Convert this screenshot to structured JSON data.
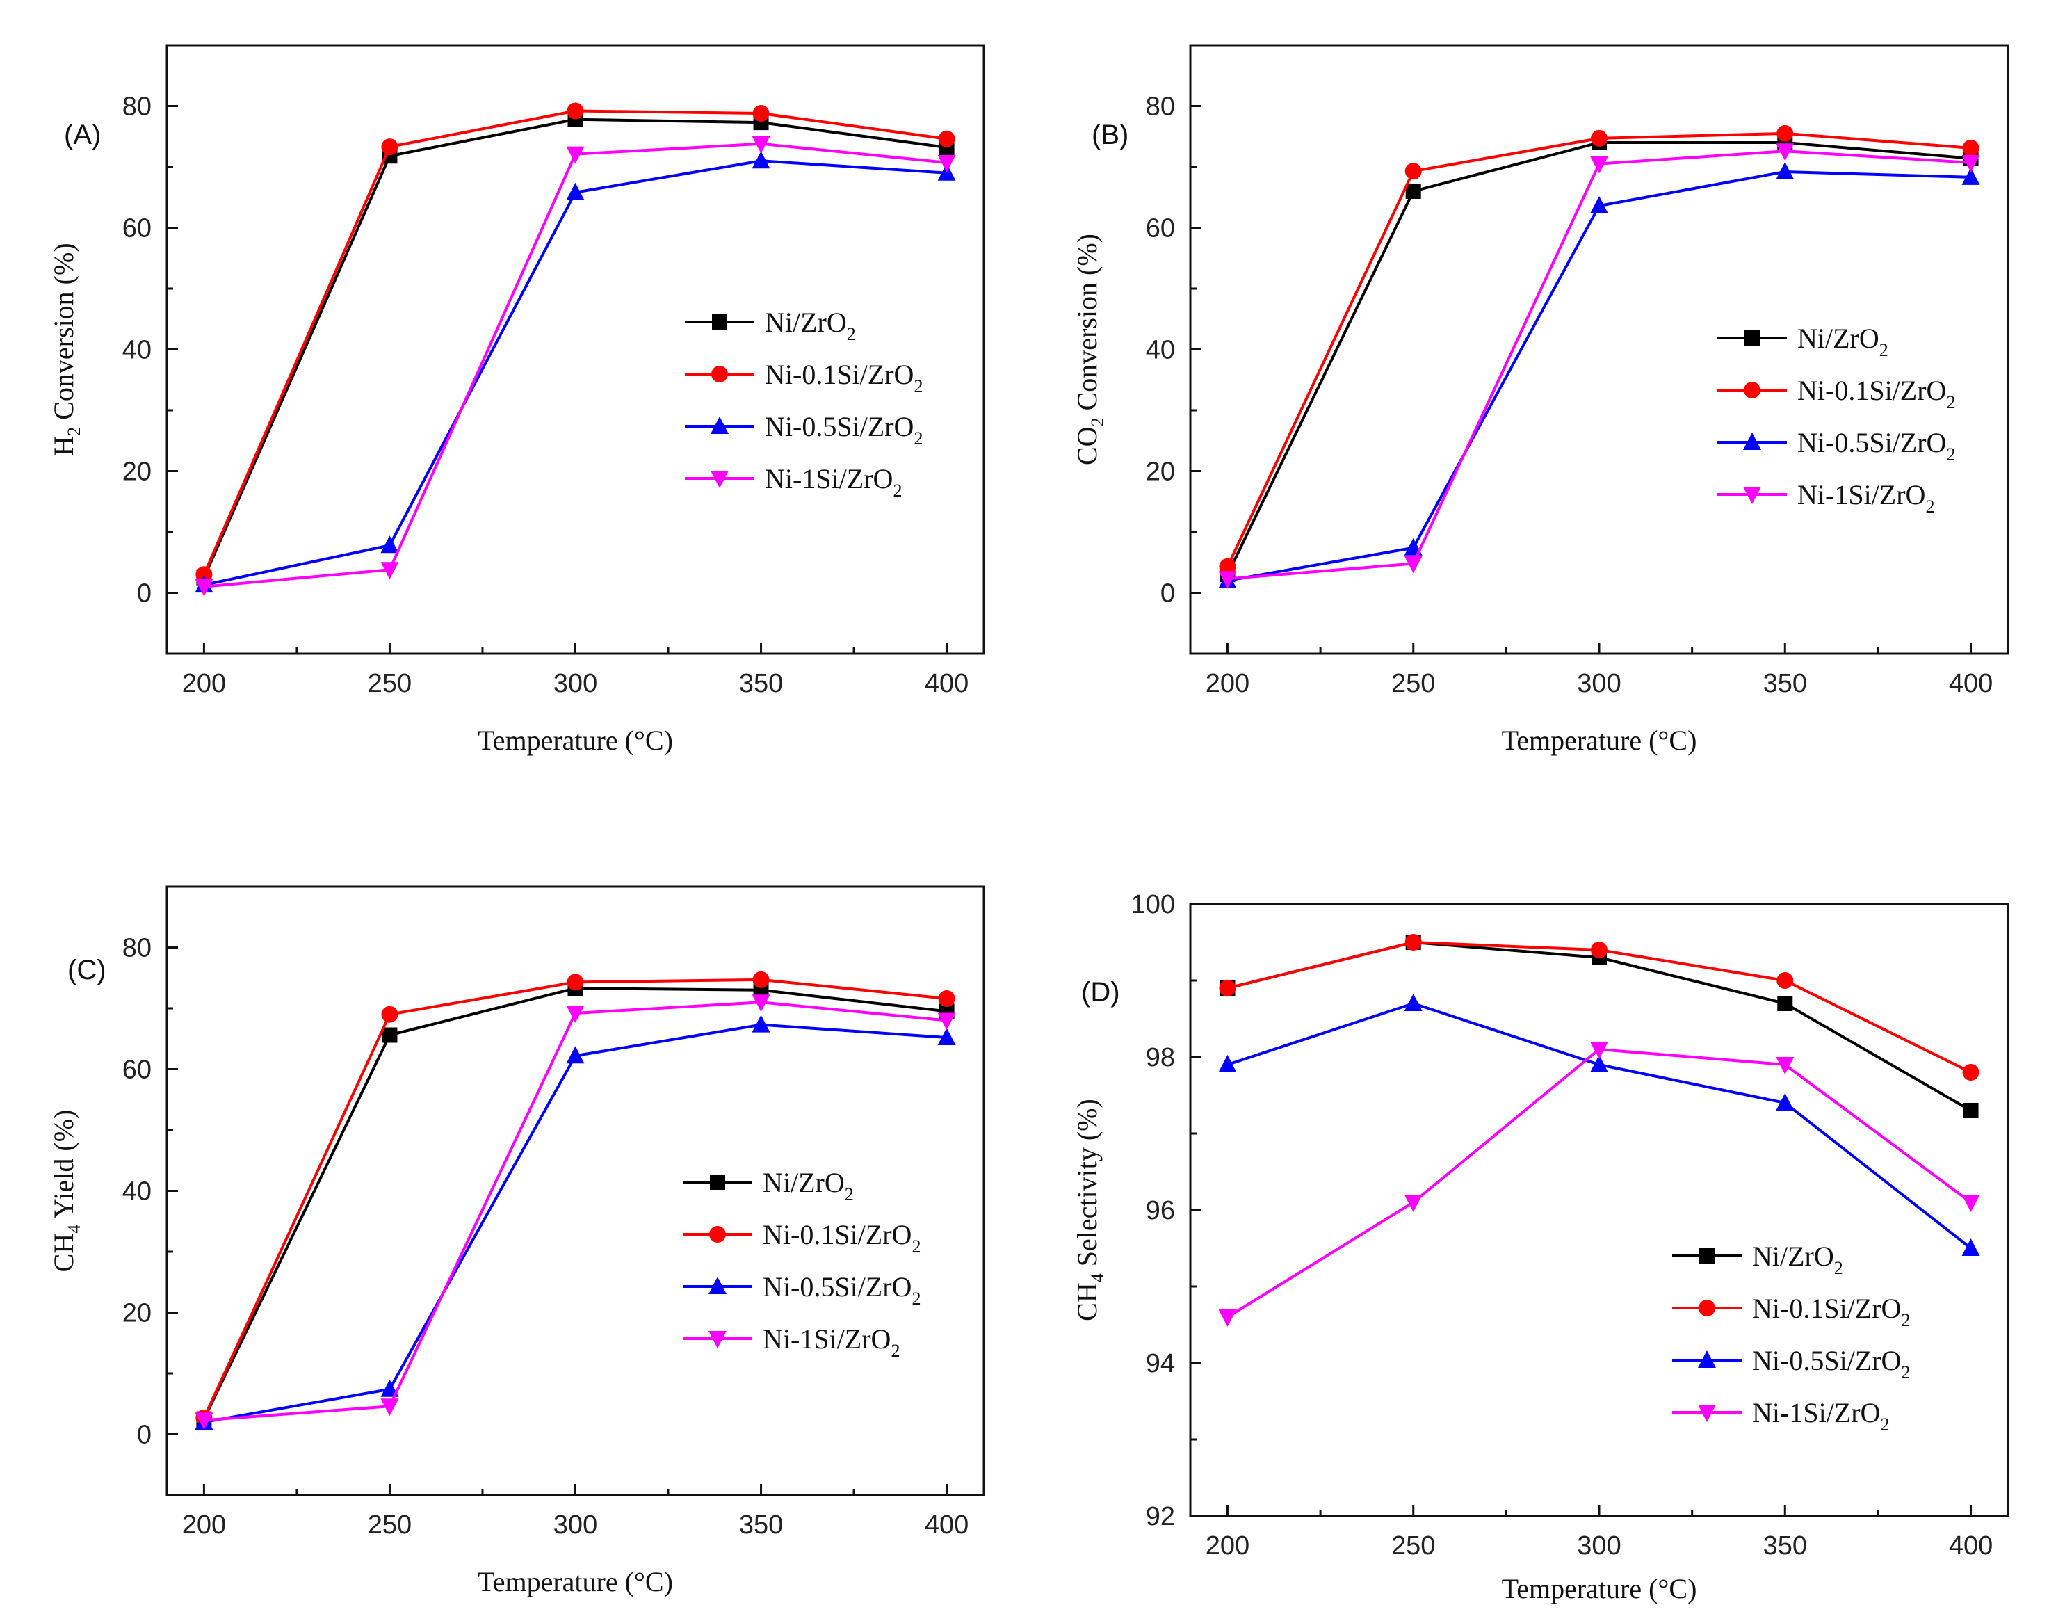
{
  "series_styles": [
    {
      "key": "ni",
      "color": "#000000",
      "marker": "square"
    },
    {
      "key": "ni01",
      "color": "#ff0000",
      "marker": "circle"
    },
    {
      "key": "ni05",
      "color": "#0000ff",
      "marker": "triangle-up"
    },
    {
      "key": "ni1",
      "color": "#ff00ff",
      "marker": "triangle-down"
    }
  ],
  "legend_names": [
    [
      "Ni/ZrO",
      "2",
      ""
    ],
    [
      "Ni-0.1Si/ZrO",
      "2",
      ""
    ],
    [
      "Ni-0.5Si/ZrO",
      "2",
      ""
    ],
    [
      "Ni-1Si/ZrO",
      "2",
      ""
    ]
  ],
  "chart_data": [
    {
      "type": "line",
      "panel_label": "(A)",
      "xlabel": "Temperature (°C)",
      "ylabel": [
        "H",
        "2",
        " Conversion (%)"
      ],
      "x": [
        200,
        250,
        300,
        350,
        400
      ],
      "xlim": [
        190,
        410
      ],
      "ylim": [
        -10,
        90
      ],
      "xticks": [
        200,
        250,
        300,
        350,
        400
      ],
      "yticks": [
        0,
        20,
        40,
        60,
        80
      ],
      "legend_position": "center-right",
      "series": [
        {
          "name": "Ni/ZrO2",
          "values": [
            2.5,
            71.8,
            77.8,
            77.3,
            73.2
          ]
        },
        {
          "name": "Ni-0.1Si/ZrO2",
          "values": [
            3.0,
            73.3,
            79.2,
            78.8,
            74.6
          ]
        },
        {
          "name": "Ni-0.5Si/ZrO2",
          "values": [
            1.3,
            7.8,
            65.8,
            71.0,
            69.0
          ]
        },
        {
          "name": "Ni-1Si/ZrO2",
          "values": [
            1.0,
            3.8,
            72.1,
            73.8,
            70.7
          ]
        }
      ]
    },
    {
      "type": "line",
      "panel_label": "(B)",
      "xlabel": "Temperature (°C)",
      "ylabel": [
        "CO",
        "2",
        " Conversion (%)"
      ],
      "x": [
        200,
        250,
        300,
        350,
        400
      ],
      "xlim": [
        190,
        410
      ],
      "ylim": [
        -10,
        90
      ],
      "xticks": [
        200,
        250,
        300,
        350,
        400
      ],
      "yticks": [
        0,
        20,
        40,
        60,
        80
      ],
      "legend_position": "center-right",
      "series": [
        {
          "name": "Ni/ZrO2",
          "values": [
            3.0,
            66.0,
            74.0,
            74.0,
            71.4
          ]
        },
        {
          "name": "Ni-0.1Si/ZrO2",
          "values": [
            4.3,
            69.3,
            74.7,
            75.5,
            73.1
          ]
        },
        {
          "name": "Ni-0.5Si/ZrO2",
          "values": [
            2.0,
            7.4,
            63.6,
            69.2,
            68.3
          ]
        },
        {
          "name": "Ni-1Si/ZrO2",
          "values": [
            2.3,
            4.8,
            70.5,
            72.6,
            70.7
          ]
        }
      ]
    },
    {
      "type": "line",
      "panel_label": "(C)",
      "xlabel": "Temperature (°C)",
      "ylabel": [
        "CH",
        "4",
        " Yield (%)"
      ],
      "x": [
        200,
        250,
        300,
        350,
        400
      ],
      "xlim": [
        190,
        410
      ],
      "ylim": [
        -10,
        90
      ],
      "xticks": [
        200,
        250,
        300,
        350,
        400
      ],
      "yticks": [
        0,
        20,
        40,
        60,
        80
      ],
      "legend_position": "center-right",
      "series": [
        {
          "name": "Ni/ZrO2",
          "values": [
            2.5,
            65.6,
            73.3,
            73.0,
            69.5
          ]
        },
        {
          "name": "Ni-0.1Si/ZrO2",
          "values": [
            2.7,
            69.0,
            74.3,
            74.7,
            71.6
          ]
        },
        {
          "name": "Ni-0.5Si/ZrO2",
          "values": [
            2.0,
            7.4,
            62.2,
            67.3,
            65.2
          ]
        },
        {
          "name": "Ni-1Si/ZrO2",
          "values": [
            2.3,
            4.6,
            69.2,
            71.0,
            68.0
          ]
        }
      ]
    },
    {
      "type": "line",
      "panel_label": "(D)",
      "xlabel": "Temperature (°C)",
      "ylabel": [
        "CH",
        "4",
        " Selectivity (%)"
      ],
      "x": [
        200,
        250,
        300,
        350,
        400
      ],
      "xlim": [
        190,
        410
      ],
      "ylim": [
        92,
        100
      ],
      "xticks": [
        200,
        250,
        300,
        350,
        400
      ],
      "yticks": [
        92,
        94,
        96,
        98,
        100
      ],
      "legend_position": "bottom-right",
      "series": [
        {
          "name": "Ni/ZrO2",
          "values": [
            98.9,
            99.5,
            99.3,
            98.7,
            97.3
          ]
        },
        {
          "name": "Ni-0.1Si/ZrO2",
          "values": [
            98.9,
            99.5,
            99.4,
            99.0,
            97.8
          ]
        },
        {
          "name": "Ni-0.5Si/ZrO2",
          "values": [
            97.9,
            98.7,
            97.9,
            97.4,
            95.5
          ]
        },
        {
          "name": "Ni-1Si/ZrO2",
          "values": [
            94.6,
            96.1,
            98.1,
            97.9,
            96.1
          ]
        }
      ]
    }
  ]
}
